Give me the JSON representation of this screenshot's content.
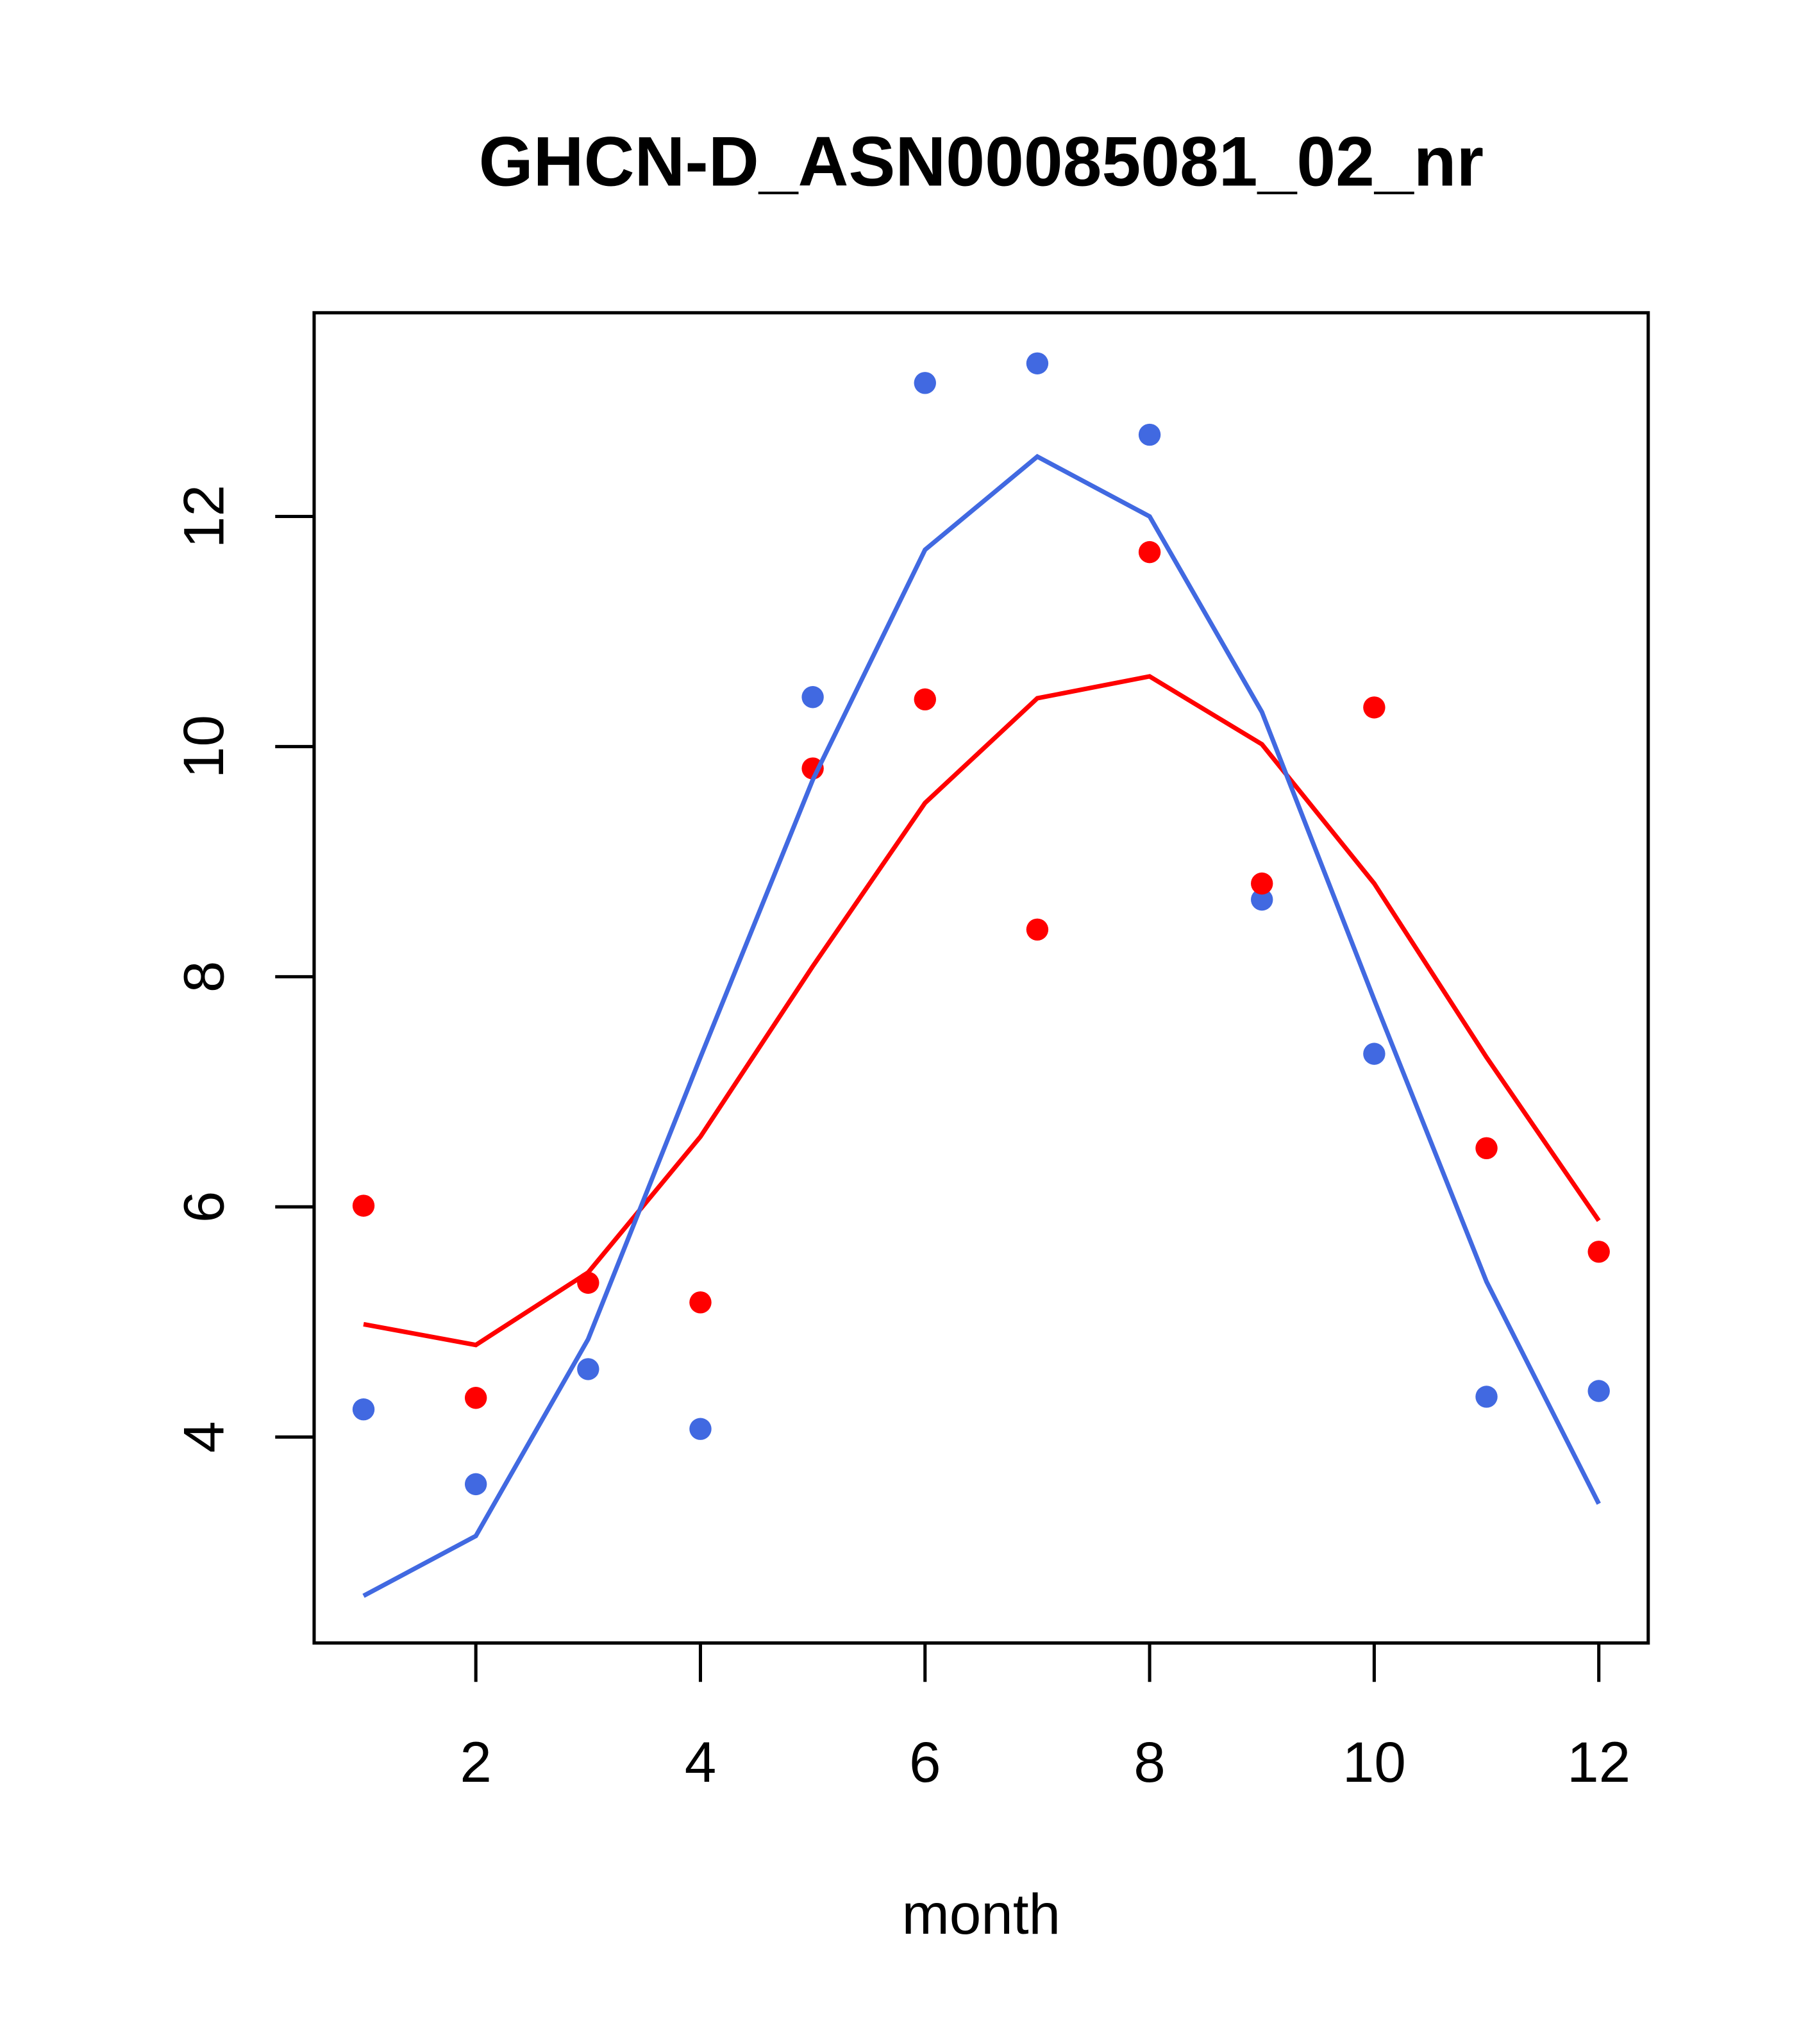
{
  "chart_data": {
    "type": "scatter",
    "title": "GHCN-D_ASN00085081_02_nr",
    "xlabel": "month",
    "ylabel": "",
    "xlim": [
      0.56,
      12.44
    ],
    "ylim": [
      2.21,
      13.77
    ],
    "xticks": [
      2,
      4,
      6,
      8,
      10,
      12
    ],
    "yticks": [
      4,
      6,
      8,
      10,
      12
    ],
    "xtick_labels": [
      "2",
      "4",
      "6",
      "8",
      "10",
      "12"
    ],
    "ytick_labels": [
      "4",
      "6",
      "8",
      "10",
      "12"
    ],
    "grid": false,
    "x": [
      1,
      2,
      3,
      4,
      5,
      6,
      7,
      8,
      9,
      10,
      11,
      12
    ],
    "series": [
      {
        "name": "blue points",
        "kind": "points",
        "color": "#4169E1",
        "values": [
          4.24,
          3.59,
          4.59,
          4.07,
          10.43,
          13.16,
          13.33,
          12.71,
          8.67,
          7.33,
          4.35,
          4.4
        ]
      },
      {
        "name": "red points",
        "kind": "points",
        "color": "#FF0000",
        "values": [
          6.01,
          4.34,
          5.34,
          5.17,
          9.81,
          10.41,
          8.41,
          11.69,
          8.81,
          10.34,
          6.51,
          5.61
        ]
      },
      {
        "name": "red line",
        "kind": "line",
        "color": "#FF0000",
        "values": [
          4.98,
          4.8,
          5.43,
          6.61,
          8.09,
          9.51,
          10.42,
          10.61,
          10.02,
          8.81,
          7.3,
          5.88
        ]
      },
      {
        "name": "blue line",
        "kind": "line",
        "color": "#4169E1",
        "values": [
          2.62,
          3.14,
          4.85,
          7.3,
          9.71,
          11.71,
          12.52,
          12.0,
          10.3,
          7.8,
          5.35,
          3.42
        ]
      }
    ]
  }
}
